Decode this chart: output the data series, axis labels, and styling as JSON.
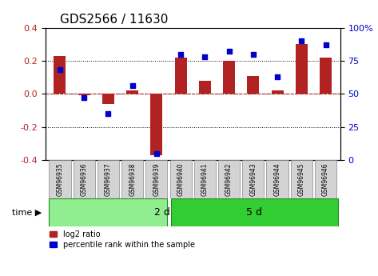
{
  "title": "GDS2566 / 11630",
  "samples": [
    "GSM96935",
    "GSM96936",
    "GSM96937",
    "GSM96938",
    "GSM96939",
    "GSM96940",
    "GSM96941",
    "GSM96942",
    "GSM96943",
    "GSM96944",
    "GSM96945",
    "GSM96946"
  ],
  "log2_ratio": [
    0.23,
    -0.01,
    -0.06,
    0.02,
    -0.37,
    0.22,
    0.08,
    0.2,
    0.11,
    0.02,
    0.3,
    0.22
  ],
  "percentile_rank": [
    68,
    47,
    35,
    56,
    5,
    80,
    78,
    82,
    80,
    63,
    90,
    87
  ],
  "group1_label": "2 d",
  "group2_label": "5 d",
  "group1_count": 5,
  "group2_count": 7,
  "bar_color": "#b22222",
  "dot_color": "#0000cd",
  "bg_color": "#ffffff",
  "grid_color": "#333333",
  "ylim_left": [
    -0.4,
    0.4
  ],
  "ylim_right": [
    0,
    100
  ],
  "yticks_left": [
    -0.4,
    -0.2,
    0.0,
    0.2,
    0.4
  ],
  "yticks_right": [
    0,
    25,
    50,
    75,
    100
  ],
  "group1_color": "#90ee90",
  "group2_color": "#32cd32",
  "label_log2": "log2 ratio",
  "label_pct": "percentile rank within the sample"
}
